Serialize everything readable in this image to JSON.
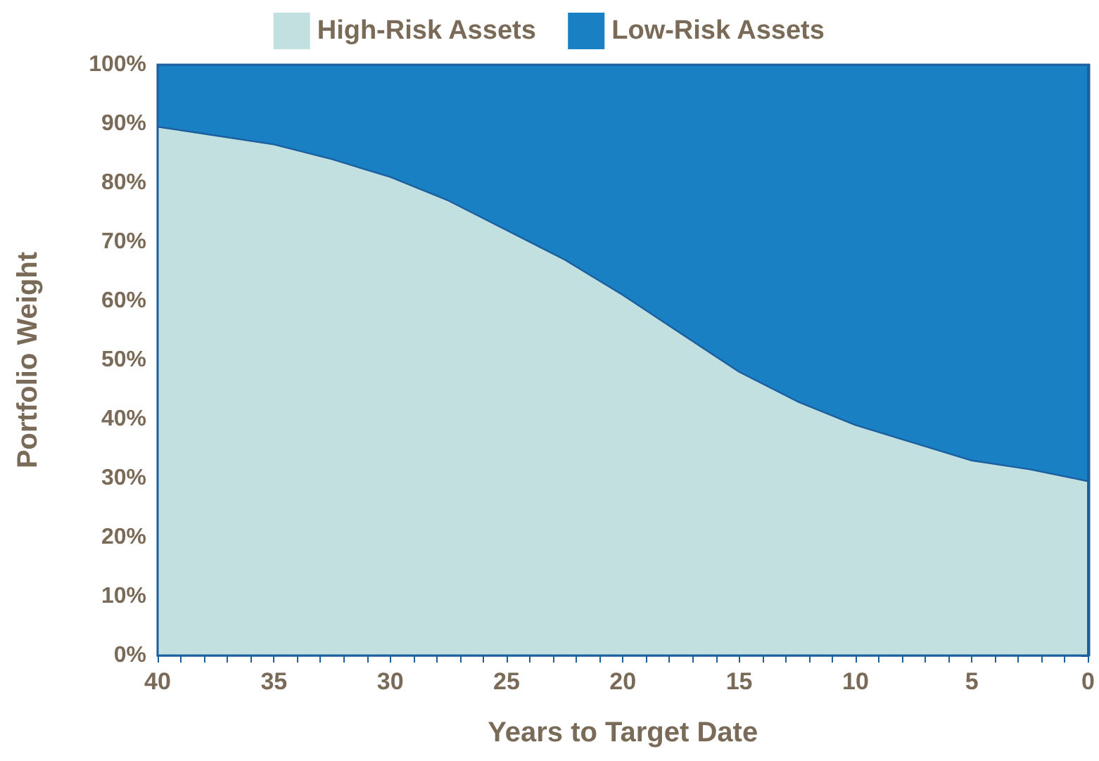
{
  "chart_data": {
    "type": "area",
    "stacked": true,
    "xlabel": "Years to Target Date",
    "ylabel": "Portfolio Weight",
    "x": [
      40,
      37.5,
      35,
      32.5,
      30,
      27.5,
      25,
      22.5,
      20,
      17.5,
      15,
      12.5,
      10,
      7.5,
      5,
      2.5,
      0
    ],
    "series": [
      {
        "name": "High-Risk Assets",
        "color": "#c2e0e0",
        "values": [
          89.5,
          88,
          86.5,
          84,
          81,
          77,
          72,
          67,
          61,
          54.5,
          48,
          43,
          39,
          36,
          33,
          31.5,
          29.5
        ]
      },
      {
        "name": "Low-Risk Assets",
        "color": "#1a80c4",
        "values": [
          10.5,
          12,
          13.5,
          16,
          19,
          23,
          28,
          33,
          39,
          45.5,
          52,
          57,
          61,
          64,
          67,
          68.5,
          70.5
        ]
      }
    ],
    "xlim": [
      40,
      0
    ],
    "xticks": [
      40,
      {
        "value": 39,
        "label": null
      },
      {
        "value": 38,
        "label": null
      },
      {
        "value": 37,
        "label": null
      },
      {
        "value": 36,
        "label": null
      },
      35,
      {
        "value": 34,
        "label": null
      },
      {
        "value": 33,
        "label": null
      },
      {
        "value": 32,
        "label": null
      },
      {
        "value": 31,
        "label": null
      },
      30,
      {
        "value": 29,
        "label": null
      },
      {
        "value": 28,
        "label": null
      },
      {
        "value": 27,
        "label": null
      },
      {
        "value": 26,
        "label": null
      },
      25,
      {
        "value": 24,
        "label": null
      },
      {
        "value": 23,
        "label": null
      },
      {
        "value": 22,
        "label": null
      },
      {
        "value": 21,
        "label": null
      },
      20,
      {
        "value": 19,
        "label": null
      },
      {
        "value": 18,
        "label": null
      },
      {
        "value": 17,
        "label": null
      },
      {
        "value": 16,
        "label": null
      },
      15,
      {
        "value": 14,
        "label": null
      },
      {
        "value": 13,
        "label": null
      },
      {
        "value": 12,
        "label": null
      },
      {
        "value": 11,
        "label": null
      },
      10,
      {
        "value": 9,
        "label": null
      },
      {
        "value": 8,
        "label": null
      },
      {
        "value": 7,
        "label": null
      },
      {
        "value": 6,
        "label": null
      },
      5,
      {
        "value": 4,
        "label": null
      },
      {
        "value": 3,
        "label": null
      },
      {
        "value": 2,
        "label": null
      },
      {
        "value": 1,
        "label": null
      },
      0
    ],
    "ylim": [
      0,
      100
    ],
    "yticks": [
      {
        "value": 0,
        "label": "0%"
      },
      {
        "value": 10,
        "label": "10%"
      },
      {
        "value": 20,
        "label": "20%"
      },
      {
        "value": 30,
        "label": "30%"
      },
      {
        "value": 40,
        "label": "40%"
      },
      {
        "value": 50,
        "label": "50%"
      },
      {
        "value": 60,
        "label": "60%"
      },
      {
        "value": 70,
        "label": "70%"
      },
      {
        "value": 80,
        "label": "80%"
      },
      {
        "value": 90,
        "label": "90%"
      },
      {
        "value": 100,
        "label": "100%"
      }
    ],
    "grid": false,
    "legend": "top",
    "marker": "none"
  }
}
